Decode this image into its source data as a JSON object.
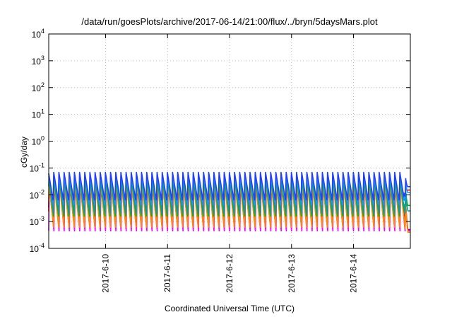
{
  "chart_data": {
    "type": "line",
    "title": "/data/run/goesPlots/archive/2017-06-14/21:00/flux/../bryn/5daysMars.plot",
    "xlabel": "Coordinated Universal Time (UTC)",
    "ylabel": "cGy/day",
    "y_scale": "log",
    "ylim": [
      0.0001,
      10000
    ],
    "y_ticks": [
      {
        "value": 0.0001,
        "base": "10",
        "exp": "-4"
      },
      {
        "value": 0.001,
        "base": "10",
        "exp": "-3"
      },
      {
        "value": 0.01,
        "base": "10",
        "exp": "-2"
      },
      {
        "value": 0.1,
        "base": "10",
        "exp": "-1"
      },
      {
        "value": 1,
        "base": "10",
        "exp": "0"
      },
      {
        "value": 10,
        "base": "10",
        "exp": "1"
      },
      {
        "value": 100,
        "base": "10",
        "exp": "2"
      },
      {
        "value": 1000,
        "base": "10",
        "exp": "3"
      },
      {
        "value": 10000,
        "base": "10",
        "exp": "4"
      }
    ],
    "xlim": [
      "2017-06-09 02:00",
      "2017-06-14 22:00"
    ],
    "x_ticks": [
      {
        "value": "2017-06-10 00:00",
        "label": "2017-6-10"
      },
      {
        "value": "2017-06-11 00:00",
        "label": "2017-6-11"
      },
      {
        "value": "2017-06-12 00:00",
        "label": "2017-6-12"
      },
      {
        "value": "2017-06-13 00:00",
        "label": "2017-6-13"
      },
      {
        "value": "2017-06-14 00:00",
        "label": "2017-6-14"
      }
    ],
    "grid": true,
    "legend": "none",
    "oscillation_period_hours": 2.0,
    "series": [
      {
        "color": "#ff00ff",
        "peak": 0.025,
        "trough": 0.00045,
        "end_value": 0.00045
      },
      {
        "color": "#ff0000",
        "peak": 0.035,
        "trough": 0.0012,
        "end_value": 0.015
      },
      {
        "color": "#8b008b",
        "peak": 0.03,
        "trough": 0.0008,
        "end_value": 0.0005
      },
      {
        "color": "#ff8c00",
        "peak": 0.028,
        "trough": 0.0006,
        "end_value": 0.0004
      },
      {
        "color": "#00c000",
        "peak": 0.04,
        "trough": 0.0015,
        "end_value": 0.004
      },
      {
        "color": "#00a0a0",
        "peak": 0.05,
        "trough": 0.002,
        "end_value": 0.0025
      },
      {
        "color": "#1e90ff",
        "peak": 0.065,
        "trough": 0.004,
        "end_value": 0.012
      },
      {
        "color": "#2040ff",
        "peak": 0.07,
        "trough": 0.006,
        "end_value": 0.02
      }
    ]
  }
}
